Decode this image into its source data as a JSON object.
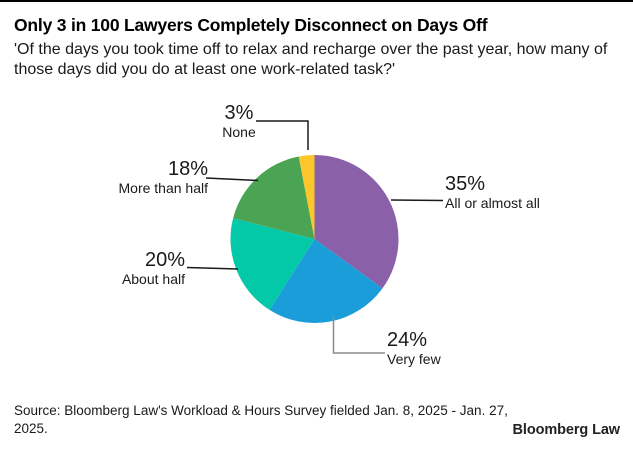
{
  "header": {
    "title": "Only 3 in 100 Lawyers Completely Disconnect on Days Off",
    "subtitle": "'Of the days you took time off to relax and recharge over the past year, how many of those days did you do at least one work-related task?'"
  },
  "chart_data": {
    "type": "pie",
    "title": "Only 3 in 100 Lawyers Completely Disconnect on Days Off",
    "unit": "percent",
    "total": 100,
    "start_angle_deg": 0,
    "direction": "clockwise",
    "legend_position": "none",
    "slices": [
      {
        "label": "All or almost all",
        "value": 35,
        "value_label": "35%",
        "color": "#8a61a9"
      },
      {
        "label": "Very few",
        "value": 24,
        "value_label": "24%",
        "color": "#1a9dd9"
      },
      {
        "label": "About half",
        "value": 20,
        "value_label": "20%",
        "color": "#04c9a9"
      },
      {
        "label": "More than half",
        "value": 18,
        "value_label": "18%",
        "color": "#4aa454"
      },
      {
        "label": "None",
        "value": 3,
        "value_label": "3%",
        "color": "#fdc62a"
      }
    ]
  },
  "footer": {
    "source": "Source: Bloomberg Law's Workload & Hours Survey fielded Jan. 8, 2025 - Jan. 27, 2025.",
    "logo": "Bloomberg Law"
  }
}
